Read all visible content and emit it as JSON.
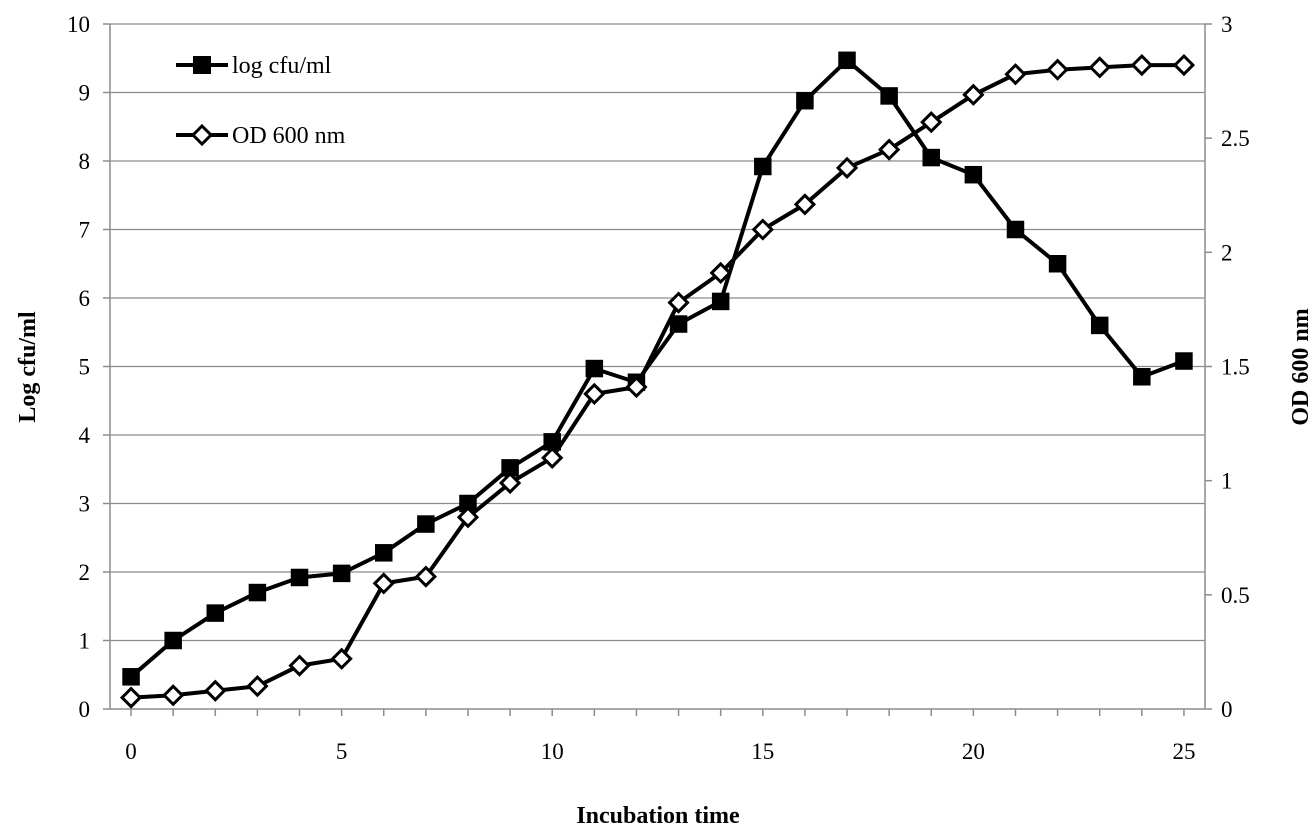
{
  "chart_data": {
    "type": "line",
    "xlabel": "Incubation time",
    "ylabel": "Log cfu/ml",
    "y2label": "OD 600 nm",
    "xlim": [
      -0.5,
      25.5
    ],
    "ylim": [
      0,
      10
    ],
    "y2lim": [
      0,
      3
    ],
    "xticks": [
      0,
      5,
      10,
      15,
      20,
      25
    ],
    "xtick_labels": [
      "0",
      "5",
      "10",
      "15",
      "20",
      "25"
    ],
    "yticks": [
      0,
      1,
      2,
      3,
      4,
      5,
      6,
      7,
      8,
      9,
      10
    ],
    "ytick_labels": [
      "0",
      "1",
      "2",
      "3",
      "4",
      "5",
      "6",
      "7",
      "8",
      "9",
      "10"
    ],
    "y2ticks": [
      0,
      0.5,
      1,
      1.5,
      2,
      2.5,
      3
    ],
    "y2tick_labels": [
      "0",
      "0.5",
      "1",
      "1.5",
      "2",
      "2.5",
      "3"
    ],
    "grid": "horizontal",
    "legend_position": "top-left",
    "series": [
      {
        "name": "log cfu/ml",
        "axis": "left",
        "marker": "filled-square",
        "color": "#000000",
        "x": [
          0,
          1,
          2,
          3,
          4,
          5,
          6,
          7,
          8,
          9,
          10,
          11,
          12,
          13,
          14,
          15,
          16,
          17,
          18,
          19,
          20,
          21,
          22,
          23,
          24,
          25
        ],
        "values": [
          0.47,
          1.0,
          1.4,
          1.7,
          1.92,
          1.98,
          2.28,
          2.7,
          3.0,
          3.52,
          3.9,
          4.97,
          4.77,
          5.62,
          5.95,
          7.92,
          8.88,
          9.47,
          8.95,
          8.05,
          7.8,
          7.0,
          6.5,
          5.6,
          4.85,
          5.08
        ]
      },
      {
        "name": "OD 600 nm",
        "axis": "right",
        "marker": "open-diamond",
        "color": "#000000",
        "x": [
          0,
          1,
          2,
          3,
          4,
          5,
          6,
          7,
          8,
          9,
          10,
          11,
          12,
          13,
          14,
          15,
          16,
          17,
          18,
          19,
          20,
          21,
          22,
          23,
          24,
          25
        ],
        "values": [
          0.05,
          0.06,
          0.08,
          0.1,
          0.19,
          0.22,
          0.55,
          0.58,
          0.84,
          0.99,
          1.1,
          1.38,
          1.41,
          1.78,
          1.91,
          2.1,
          2.21,
          2.37,
          2.45,
          2.57,
          2.69,
          2.78,
          2.8,
          2.81,
          2.82,
          2.82
        ]
      }
    ]
  }
}
